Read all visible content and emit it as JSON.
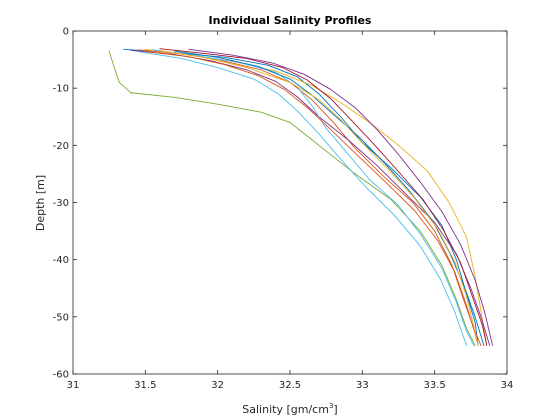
{
  "chart_data": {
    "type": "line",
    "title": "Individual Salinity Profiles",
    "xlabel": "Salinity [gm/cm",
    "xlabel_sup": "3",
    "xlabel_suffix": "]",
    "ylabel": "Depth [m]",
    "xlim": [
      31,
      34
    ],
    "ylim": [
      -60,
      0
    ],
    "xticks": [
      31,
      31.5,
      32,
      32.5,
      33,
      33.5,
      34
    ],
    "xtick_labels": [
      "31",
      "31.5",
      "32",
      "32.5",
      "33",
      "33.5",
      "34"
    ],
    "yticks": [
      0,
      -10,
      -20,
      -30,
      -40,
      -50,
      -60
    ],
    "ytick_labels": [
      "0",
      "-10",
      "-20",
      "-30",
      "-40",
      "-50",
      "-60"
    ],
    "grid": false,
    "legend": "none",
    "colors": [
      "#0072bd",
      "#d95319",
      "#edb120",
      "#7e2f8e",
      "#77ac30",
      "#4dbeee",
      "#a2142f"
    ],
    "series": [
      {
        "color": "#0072bd",
        "points": [
          [
            31.35,
            -3.2
          ],
          [
            31.7,
            -3.8
          ],
          [
            32.05,
            -4.6
          ],
          [
            32.35,
            -6
          ],
          [
            32.55,
            -8
          ],
          [
            32.7,
            -11
          ],
          [
            32.85,
            -15
          ],
          [
            33.0,
            -19.5
          ],
          [
            33.2,
            -24
          ],
          [
            33.4,
            -29
          ],
          [
            33.55,
            -34
          ],
          [
            33.65,
            -40
          ],
          [
            33.72,
            -46
          ],
          [
            33.78,
            -51
          ],
          [
            33.8,
            -55
          ]
        ]
      },
      {
        "color": "#d95319",
        "points": [
          [
            31.45,
            -3.3
          ],
          [
            31.75,
            -4
          ],
          [
            32.0,
            -5
          ],
          [
            32.3,
            -6.8
          ],
          [
            32.5,
            -9
          ],
          [
            32.65,
            -12
          ],
          [
            32.8,
            -16
          ],
          [
            32.95,
            -20.5
          ],
          [
            33.15,
            -25.5
          ],
          [
            33.35,
            -30
          ],
          [
            33.5,
            -35
          ],
          [
            33.62,
            -41
          ],
          [
            33.7,
            -47
          ],
          [
            33.77,
            -52
          ],
          [
            33.82,
            -55
          ]
        ]
      },
      {
        "color": "#edb120",
        "points": [
          [
            31.5,
            -3.2
          ],
          [
            31.8,
            -4.2
          ],
          [
            32.1,
            -5.3
          ],
          [
            32.4,
            -7
          ],
          [
            32.65,
            -9.5
          ],
          [
            32.85,
            -12.5
          ],
          [
            33.05,
            -16
          ],
          [
            33.25,
            -20
          ],
          [
            33.45,
            -24.5
          ],
          [
            33.6,
            -30
          ],
          [
            33.72,
            -36
          ],
          [
            33.78,
            -43
          ],
          [
            33.82,
            -49
          ],
          [
            33.86,
            -55
          ]
        ]
      },
      {
        "color": "#7e2f8e",
        "points": [
          [
            31.4,
            -3.4
          ],
          [
            31.7,
            -4.1
          ],
          [
            31.95,
            -5.2
          ],
          [
            32.2,
            -6.8
          ],
          [
            32.4,
            -8.8
          ],
          [
            32.55,
            -11.5
          ],
          [
            32.7,
            -15
          ],
          [
            32.9,
            -19
          ],
          [
            33.1,
            -23.5
          ],
          [
            33.3,
            -28.5
          ],
          [
            33.5,
            -33.5
          ],
          [
            33.65,
            -39
          ],
          [
            33.75,
            -45
          ],
          [
            33.82,
            -50
          ],
          [
            33.88,
            -55
          ]
        ]
      },
      {
        "color": "#77ac30",
        "points": [
          [
            31.25,
            -3.5
          ],
          [
            31.28,
            -6
          ],
          [
            31.32,
            -9
          ],
          [
            31.4,
            -10.8
          ],
          [
            31.7,
            -11.6
          ],
          [
            32.0,
            -12.8
          ],
          [
            32.3,
            -14.2
          ],
          [
            32.5,
            -16
          ],
          [
            32.6,
            -18
          ],
          [
            32.75,
            -21
          ],
          [
            32.95,
            -25
          ],
          [
            33.2,
            -29.5
          ],
          [
            33.4,
            -35
          ],
          [
            33.55,
            -41
          ],
          [
            33.65,
            -47
          ],
          [
            33.72,
            -52
          ],
          [
            33.78,
            -55
          ]
        ]
      },
      {
        "color": "#4dbeee",
        "points": [
          [
            31.55,
            -3.3
          ],
          [
            31.85,
            -4.3
          ],
          [
            32.15,
            -5.5
          ],
          [
            32.4,
            -7.2
          ],
          [
            32.55,
            -9.8
          ],
          [
            32.65,
            -13
          ],
          [
            32.75,
            -17
          ],
          [
            32.9,
            -21.5
          ],
          [
            33.05,
            -26
          ],
          [
            33.25,
            -30.5
          ],
          [
            33.4,
            -35.5
          ],
          [
            33.55,
            -41.5
          ],
          [
            33.65,
            -47.5
          ],
          [
            33.72,
            -52.5
          ],
          [
            33.77,
            -55
          ]
        ]
      },
      {
        "color": "#a2142f",
        "points": [
          [
            31.6,
            -3.1
          ],
          [
            31.9,
            -3.9
          ],
          [
            32.2,
            -4.8
          ],
          [
            32.45,
            -6.4
          ],
          [
            32.62,
            -8.6
          ],
          [
            32.78,
            -11.8
          ],
          [
            32.92,
            -15.5
          ],
          [
            33.08,
            -19.8
          ],
          [
            33.25,
            -24.6
          ],
          [
            33.42,
            -29.5
          ],
          [
            33.56,
            -34.8
          ],
          [
            33.68,
            -40.6
          ],
          [
            33.76,
            -46.4
          ],
          [
            33.83,
            -51.5
          ],
          [
            33.86,
            -55
          ]
        ]
      },
      {
        "color": "#0072bd",
        "points": [
          [
            31.7,
            -3.5
          ],
          [
            32.0,
            -4.6
          ],
          [
            32.28,
            -6.2
          ],
          [
            32.5,
            -8.4
          ],
          [
            32.65,
            -11.2
          ],
          [
            32.8,
            -14.6
          ],
          [
            32.98,
            -18.6
          ],
          [
            33.15,
            -23
          ],
          [
            33.32,
            -27.8
          ],
          [
            33.48,
            -33
          ],
          [
            33.6,
            -38.6
          ],
          [
            33.7,
            -44.4
          ],
          [
            33.78,
            -50
          ],
          [
            33.84,
            -55
          ]
        ]
      },
      {
        "color": "#d95319",
        "points": [
          [
            31.5,
            -3.6
          ],
          [
            31.8,
            -4.5
          ],
          [
            32.05,
            -5.9
          ],
          [
            32.28,
            -7.8
          ],
          [
            32.46,
            -10.2
          ],
          [
            32.62,
            -13.4
          ],
          [
            32.78,
            -17.2
          ],
          [
            32.96,
            -21.6
          ],
          [
            33.16,
            -26.4
          ],
          [
            33.36,
            -31.4
          ],
          [
            33.52,
            -36.6
          ],
          [
            33.64,
            -42.2
          ],
          [
            33.72,
            -48
          ],
          [
            33.78,
            -53
          ],
          [
            33.8,
            -55
          ]
        ]
      },
      {
        "color": "#7e2f8e",
        "points": [
          [
            31.8,
            -3.2
          ],
          [
            32.1,
            -4.2
          ],
          [
            32.38,
            -5.6
          ],
          [
            32.6,
            -7.6
          ],
          [
            32.78,
            -10.2
          ],
          [
            32.95,
            -13.4
          ],
          [
            33.1,
            -17.2
          ],
          [
            33.25,
            -21.6
          ],
          [
            33.4,
            -26.4
          ],
          [
            33.55,
            -31.6
          ],
          [
            33.68,
            -37.4
          ],
          [
            33.78,
            -43.6
          ],
          [
            33.85,
            -49.6
          ],
          [
            33.9,
            -55
          ]
        ]
      },
      {
        "color": "#edb120",
        "points": [
          [
            31.6,
            -3.4
          ],
          [
            31.9,
            -4.6
          ],
          [
            32.2,
            -6.4
          ],
          [
            32.5,
            -9
          ],
          [
            32.7,
            -12
          ],
          [
            32.85,
            -15.5
          ],
          [
            33.0,
            -19.6
          ],
          [
            33.18,
            -24.2
          ],
          [
            33.36,
            -29.2
          ],
          [
            33.52,
            -34.6
          ],
          [
            33.64,
            -40.4
          ],
          [
            33.72,
            -46.4
          ],
          [
            33.77,
            -51.6
          ],
          [
            33.8,
            -55
          ]
        ]
      },
      {
        "color": "#4dbeee",
        "points": [
          [
            31.45,
            -3.6
          ],
          [
            31.75,
            -4.8
          ],
          [
            32.0,
            -6.4
          ],
          [
            32.25,
            -8.4
          ],
          [
            32.42,
            -11
          ],
          [
            32.56,
            -14.2
          ],
          [
            32.7,
            -18
          ],
          [
            32.85,
            -22.4
          ],
          [
            33.02,
            -27.2
          ],
          [
            33.22,
            -32.2
          ],
          [
            33.4,
            -37.6
          ],
          [
            33.54,
            -43.4
          ],
          [
            33.64,
            -49.2
          ],
          [
            33.72,
            -55
          ]
        ]
      }
    ]
  }
}
